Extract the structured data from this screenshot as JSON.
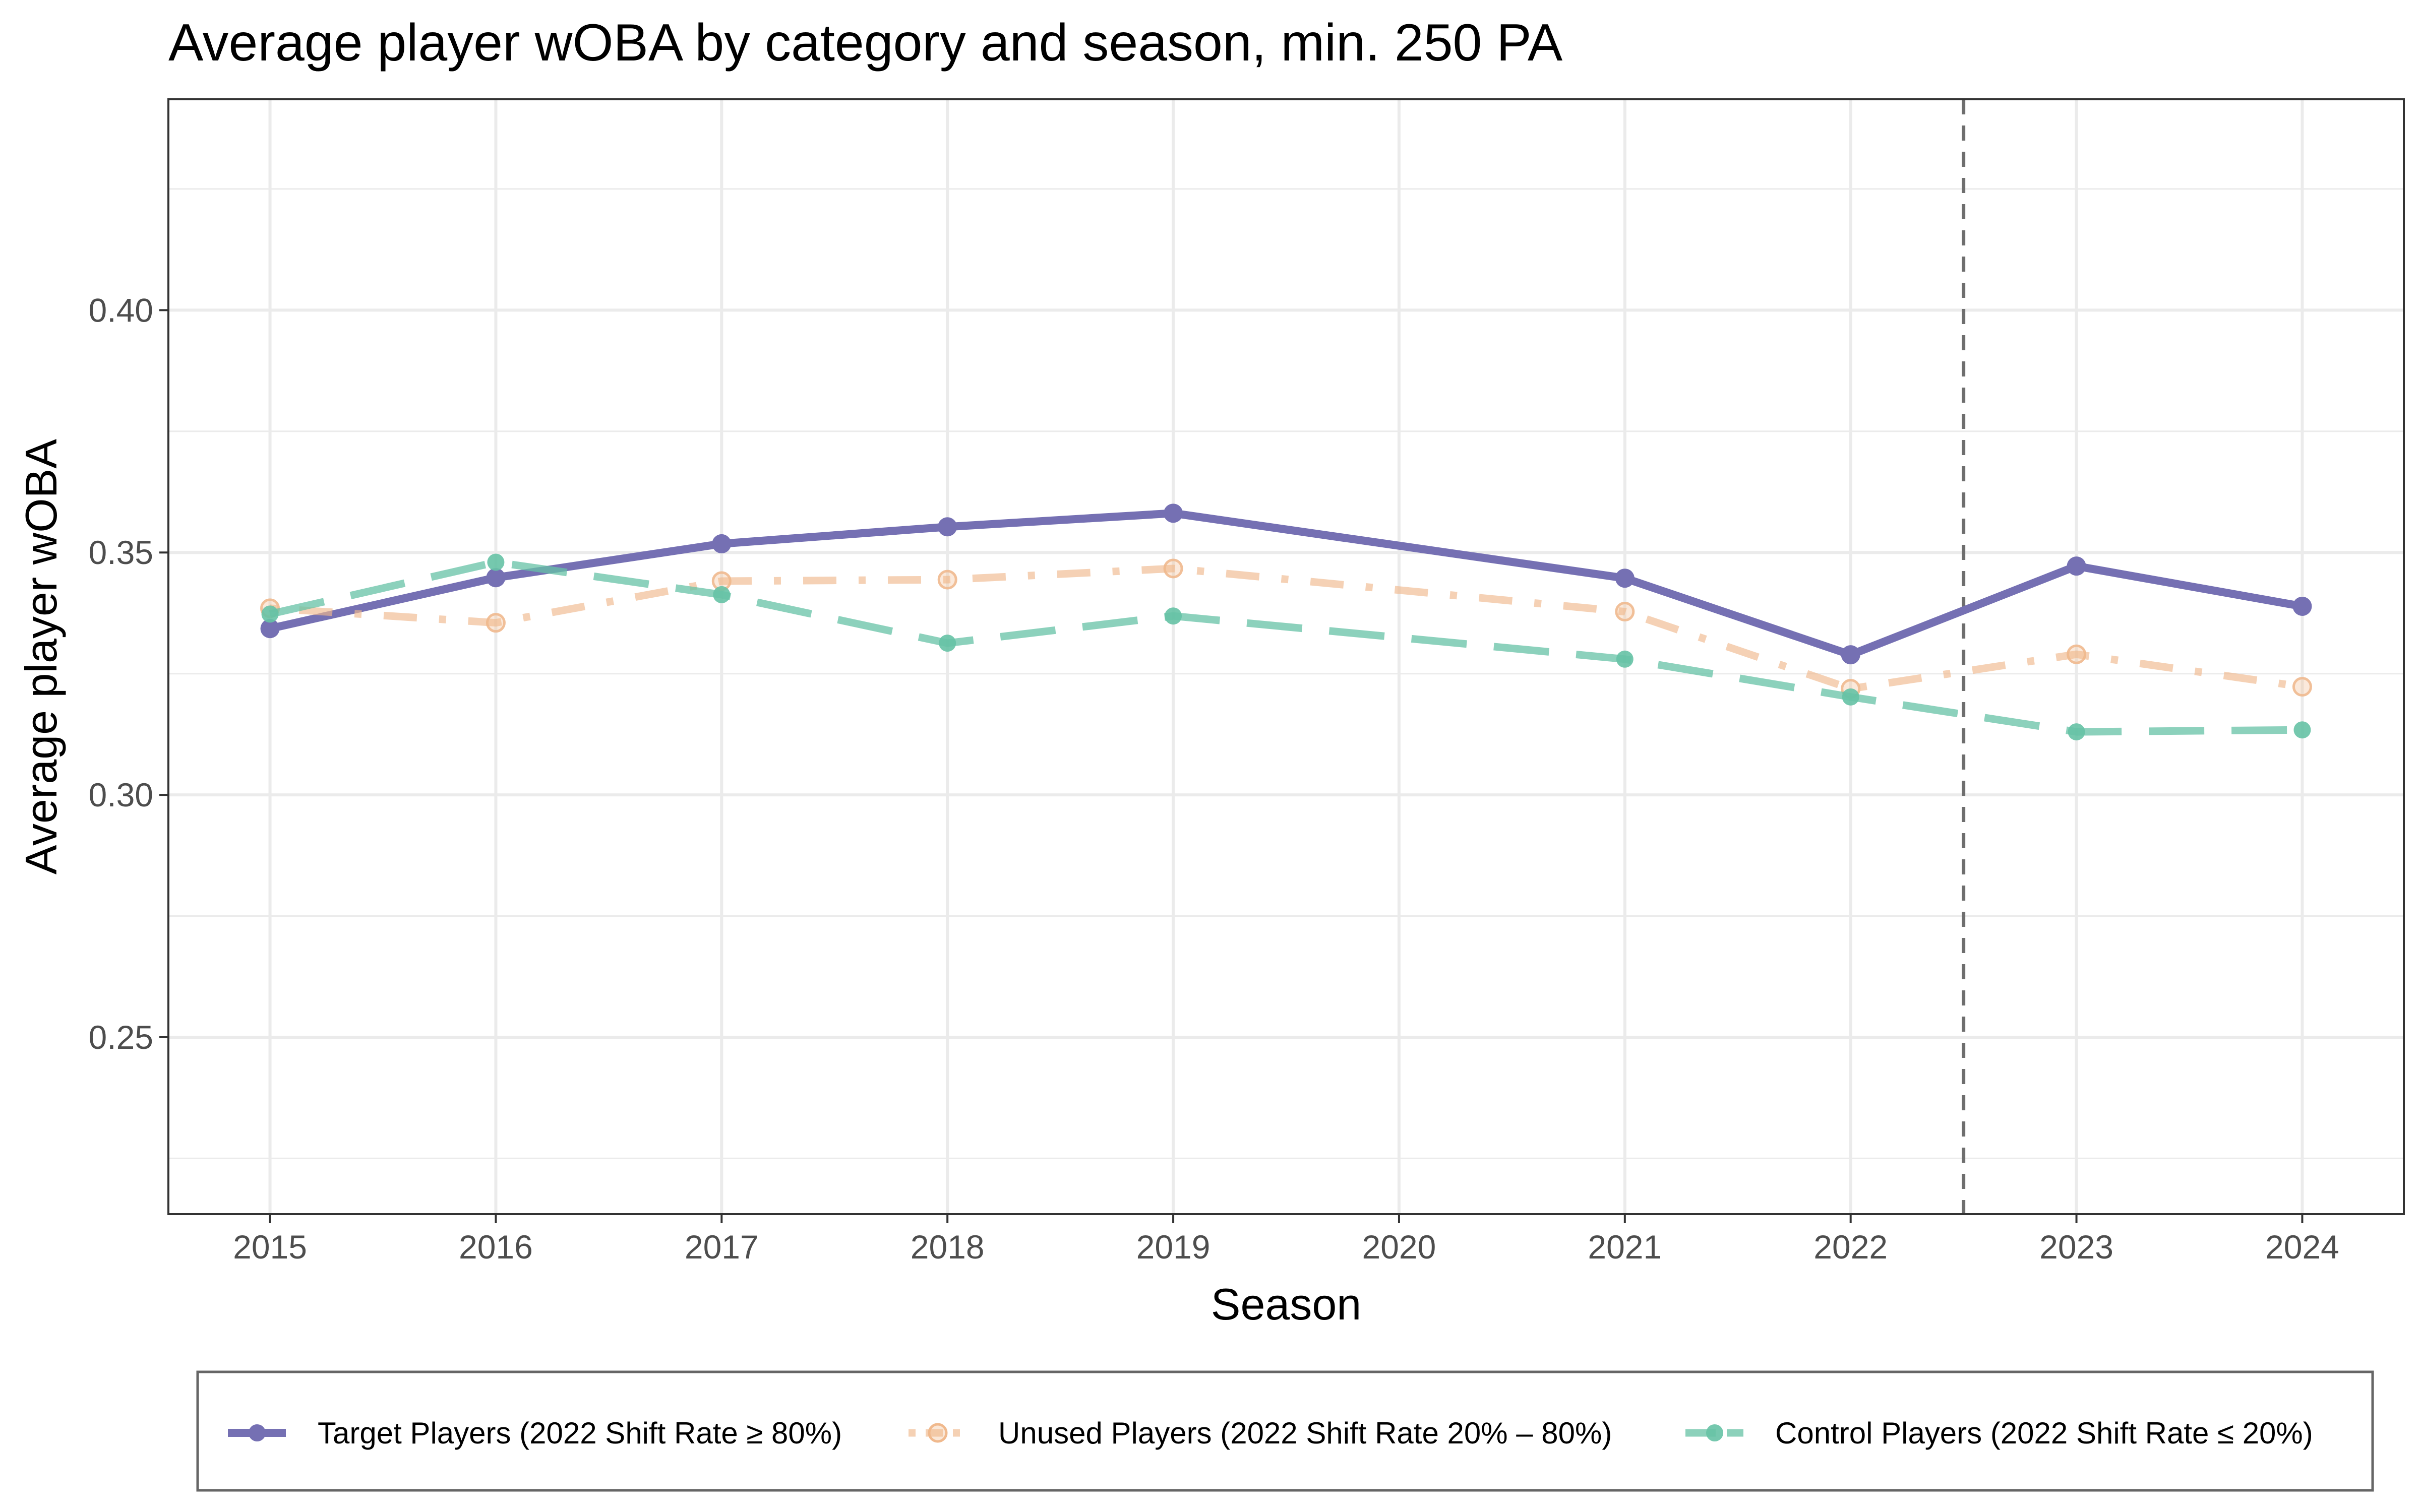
{
  "chart_data": {
    "type": "line",
    "title": "Average player wOBA by category and season, min. 250 PA",
    "xlabel": "Season",
    "ylabel": "Average player wOBA",
    "x": [
      2015,
      2016,
      2017,
      2018,
      2019,
      2020,
      2021,
      2022,
      2023,
      2024
    ],
    "xlim": [
      2014.55,
      2024.45
    ],
    "ylim": [
      0.2135,
      0.4435
    ],
    "y_ticks": [
      "0.25",
      "0.30",
      "0.35",
      "0.40"
    ],
    "y_tick_values": [
      0.25,
      0.3,
      0.35,
      0.4
    ],
    "grid": true,
    "vline": {
      "x": 2022.5,
      "style": "dashed"
    },
    "legend_position": "bottom",
    "series": [
      {
        "name": "Target Players (2022 Shift Rate ≥ 80%)",
        "color": "#7570b3",
        "dash": "solid",
        "x": [
          2015,
          2016,
          2017,
          2018,
          2019,
          2021,
          2022,
          2023,
          2024
        ],
        "values": [
          0.3343,
          0.3448,
          0.3518,
          0.3553,
          0.3581,
          0.3447,
          0.3289,
          0.3472,
          0.3389
        ]
      },
      {
        "name": "Unused Players (2022 Shift Rate 20% – 80%)",
        "color": "#f0b98d",
        "dash": "dotdash",
        "x": [
          2015,
          2016,
          2017,
          2018,
          2019,
          2021,
          2022,
          2023,
          2024
        ],
        "values": [
          0.3385,
          0.3355,
          0.3441,
          0.3444,
          0.3467,
          0.3378,
          0.3219,
          0.329,
          0.3223
        ]
      },
      {
        "name": "Control Players (2022 Shift Rate ≤ 20%)",
        "color": "#66c2a5",
        "dash": "longdash",
        "x": [
          2015,
          2016,
          2017,
          2018,
          2019,
          2021,
          2022,
          2023,
          2024
        ],
        "values": [
          0.3373,
          0.348,
          0.3413,
          0.3313,
          0.3369,
          0.328,
          0.3202,
          0.313,
          0.3134
        ]
      }
    ]
  }
}
